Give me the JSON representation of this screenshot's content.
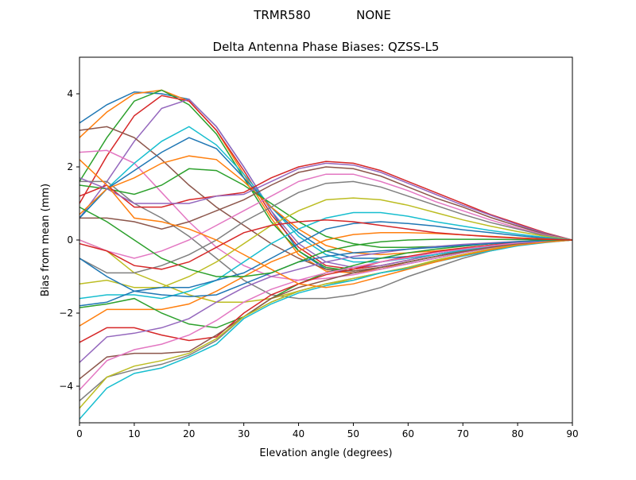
{
  "figure": {
    "suptitle_left": "TRMR580",
    "suptitle_right": "NONE"
  },
  "chart_data": {
    "type": "line",
    "title": "Delta Antenna Phase Biases: QZSS-L5",
    "xlabel": "Elevation angle (degrees)",
    "ylabel": "Bias from mean (mm)",
    "xlim": [
      0,
      90
    ],
    "ylim": [
      -5,
      5
    ],
    "xticks": [
      "0",
      "10",
      "20",
      "30",
      "40",
      "50",
      "60",
      "70",
      "80",
      "90"
    ],
    "yticks": [
      "−4",
      "−2",
      "0",
      "2",
      "4"
    ],
    "grid": false,
    "colors": [
      "#1f77b4",
      "#ff7f0e",
      "#2ca02c",
      "#d62728",
      "#9467bd",
      "#8c564b",
      "#e377c2",
      "#7f7f7f",
      "#bcbd22",
      "#17becf"
    ],
    "x": [
      0,
      5,
      10,
      15,
      20,
      25,
      30,
      35,
      40,
      45,
      50,
      55,
      60,
      65,
      70,
      75,
      80,
      85,
      90
    ],
    "series": [
      {
        "values": [
          3.2,
          3.7,
          4.05,
          4.0,
          3.85,
          3.1,
          2.0,
          0.8,
          -0.3,
          -0.8,
          -0.9,
          -0.8,
          -0.65,
          -0.5,
          -0.35,
          -0.22,
          -0.12,
          -0.05,
          0
        ]
      },
      {
        "values": [
          2.8,
          3.5,
          4.0,
          4.1,
          3.8,
          3.0,
          1.8,
          0.6,
          -0.4,
          -0.85,
          -0.9,
          -0.8,
          -0.6,
          -0.45,
          -0.3,
          -0.2,
          -0.1,
          -0.04,
          0
        ]
      },
      {
        "values": [
          1.6,
          2.8,
          3.8,
          4.1,
          3.7,
          2.9,
          1.7,
          0.5,
          -0.3,
          -0.75,
          -0.85,
          -0.75,
          -0.6,
          -0.45,
          -0.3,
          -0.2,
          -0.1,
          -0.04,
          0
        ]
      },
      {
        "values": [
          1.0,
          2.3,
          3.4,
          3.95,
          3.8,
          3.0,
          1.9,
          0.7,
          -0.2,
          -0.7,
          -0.8,
          -0.7,
          -0.55,
          -0.4,
          -0.28,
          -0.18,
          -0.1,
          -0.04,
          0
        ]
      },
      {
        "values": [
          0.6,
          1.6,
          2.7,
          3.6,
          3.85,
          3.1,
          2.0,
          0.8,
          -0.1,
          -0.6,
          -0.75,
          -0.7,
          -0.55,
          -0.4,
          -0.28,
          -0.18,
          -0.1,
          -0.04,
          0
        ]
      },
      {
        "values": [
          3.0,
          3.1,
          2.8,
          2.2,
          1.5,
          0.9,
          0.4,
          -0.1,
          -0.5,
          -0.8,
          -0.85,
          -0.75,
          -0.6,
          -0.45,
          -0.3,
          -0.2,
          -0.1,
          -0.04,
          0
        ]
      },
      {
        "values": [
          2.4,
          2.45,
          2.1,
          1.3,
          0.5,
          -0.2,
          -0.7,
          -1.0,
          -1.1,
          -1.05,
          -0.95,
          -0.8,
          -0.65,
          -0.5,
          -0.35,
          -0.22,
          -0.12,
          -0.05,
          0
        ]
      },
      {
        "values": [
          1.6,
          1.6,
          1.0,
          0.6,
          0.1,
          -0.5,
          -1.1,
          -1.5,
          -1.6,
          -1.6,
          -1.5,
          -1.3,
          -1.0,
          -0.75,
          -0.5,
          -0.3,
          -0.15,
          -0.06,
          0
        ]
      },
      {
        "values": [
          0.0,
          -0.3,
          -0.9,
          -1.2,
          -1.5,
          -1.7,
          -1.7,
          -1.6,
          -1.4,
          -1.2,
          -1.1,
          -0.9,
          -0.75,
          -0.55,
          -0.4,
          -0.25,
          -0.12,
          -0.05,
          0
        ]
      },
      {
        "values": [
          0.6,
          1.4,
          2.1,
          2.7,
          3.1,
          2.6,
          1.8,
          0.9,
          0.1,
          -0.4,
          -0.6,
          -0.6,
          -0.5,
          -0.4,
          -0.28,
          -0.18,
          -0.1,
          -0.04,
          0
        ]
      },
      {
        "values": [
          0.6,
          1.4,
          1.9,
          2.4,
          2.8,
          2.5,
          1.7,
          0.9,
          0.2,
          -0.3,
          -0.5,
          -0.5,
          -0.45,
          -0.35,
          -0.25,
          -0.16,
          -0.08,
          -0.03,
          0
        ]
      },
      {
        "values": [
          0.7,
          1.4,
          1.7,
          2.1,
          2.3,
          2.2,
          1.6,
          0.9,
          0.3,
          -0.15,
          -0.35,
          -0.4,
          -0.35,
          -0.3,
          -0.22,
          -0.14,
          -0.08,
          -0.03,
          0
        ]
      },
      {
        "values": [
          1.5,
          1.4,
          1.25,
          1.5,
          1.95,
          1.9,
          1.5,
          1.0,
          0.5,
          0.1,
          -0.1,
          -0.2,
          -0.2,
          -0.18,
          -0.14,
          -0.1,
          -0.06,
          -0.02,
          0
        ]
      },
      {
        "values": [
          1.2,
          1.5,
          0.9,
          0.9,
          1.1,
          1.2,
          1.3,
          1.7,
          2.0,
          2.15,
          2.1,
          1.9,
          1.6,
          1.3,
          1.0,
          0.7,
          0.45,
          0.2,
          0
        ]
      },
      {
        "values": [
          1.7,
          1.4,
          1.0,
          1.0,
          1.0,
          1.2,
          1.25,
          1.6,
          1.95,
          2.1,
          2.05,
          1.85,
          1.55,
          1.25,
          0.95,
          0.68,
          0.42,
          0.18,
          0
        ]
      },
      {
        "values": [
          0.6,
          0.6,
          0.5,
          0.3,
          0.5,
          0.8,
          1.1,
          1.5,
          1.85,
          2.0,
          1.95,
          1.75,
          1.45,
          1.15,
          0.9,
          0.62,
          0.38,
          0.16,
          0
        ]
      },
      {
        "values": [
          0.0,
          -0.3,
          -0.5,
          -0.3,
          0.0,
          0.4,
          0.8,
          1.2,
          1.6,
          1.8,
          1.8,
          1.6,
          1.35,
          1.05,
          0.8,
          0.55,
          0.33,
          0.14,
          0
        ]
      },
      {
        "values": [
          -0.5,
          -0.9,
          -0.9,
          -0.7,
          -0.4,
          0.0,
          0.5,
          0.9,
          1.3,
          1.55,
          1.6,
          1.45,
          1.2,
          0.95,
          0.7,
          0.48,
          0.3,
          0.12,
          0
        ]
      },
      {
        "values": [
          -1.2,
          -1.1,
          -1.3,
          -1.3,
          -1.0,
          -0.6,
          -0.1,
          0.4,
          0.8,
          1.1,
          1.15,
          1.1,
          0.95,
          0.75,
          0.55,
          0.38,
          0.23,
          0.1,
          0
        ]
      },
      {
        "values": [
          -1.6,
          -1.5,
          -1.5,
          -1.6,
          -1.4,
          -1.1,
          -0.6,
          -0.1,
          0.3,
          0.6,
          0.75,
          0.75,
          0.65,
          0.5,
          0.38,
          0.26,
          0.16,
          0.07,
          0
        ]
      },
      {
        "values": [
          -1.8,
          -1.7,
          -1.4,
          -1.3,
          -1.3,
          -1.1,
          -0.9,
          -0.5,
          -0.1,
          0.3,
          0.45,
          0.5,
          0.45,
          0.38,
          0.28,
          0.2,
          0.12,
          0.05,
          0
        ]
      },
      {
        "values": [
          -2.35,
          -1.9,
          -1.9,
          -1.9,
          -1.75,
          -1.4,
          -1.0,
          -0.6,
          -0.3,
          0.0,
          0.15,
          0.2,
          0.2,
          0.18,
          0.14,
          0.1,
          0.06,
          0.03,
          0
        ]
      },
      {
        "values": [
          -1.85,
          -1.75,
          -1.6,
          -2.0,
          -2.3,
          -2.4,
          -2.1,
          -1.6,
          -1.2,
          -0.9,
          -0.7,
          -0.5,
          -0.35,
          -0.25,
          -0.17,
          -0.1,
          -0.05,
          -0.02,
          0
        ]
      },
      {
        "values": [
          -2.8,
          -2.4,
          -2.4,
          -2.6,
          -2.75,
          -2.65,
          -2.0,
          -1.5,
          -1.2,
          -0.95,
          -0.8,
          -0.6,
          -0.45,
          -0.32,
          -0.22,
          -0.14,
          -0.07,
          -0.03,
          0
        ]
      },
      {
        "values": [
          -3.35,
          -2.65,
          -2.55,
          -2.4,
          -2.15,
          -1.7,
          -1.3,
          -1.0,
          -0.8,
          -0.6,
          -0.45,
          -0.35,
          -0.25,
          -0.18,
          -0.12,
          -0.08,
          -0.04,
          -0.02,
          0
        ]
      },
      {
        "values": [
          -3.8,
          -3.2,
          -3.1,
          -3.1,
          -3.05,
          -2.6,
          -2.1,
          -1.6,
          -1.3,
          -1.1,
          -0.9,
          -0.75,
          -0.6,
          -0.45,
          -0.32,
          -0.2,
          -0.1,
          -0.04,
          0
        ]
      },
      {
        "values": [
          -4.1,
          -3.3,
          -3.0,
          -2.85,
          -2.6,
          -2.2,
          -1.7,
          -1.35,
          -1.1,
          -0.9,
          -0.75,
          -0.6,
          -0.48,
          -0.35,
          -0.25,
          -0.16,
          -0.08,
          -0.03,
          0
        ]
      },
      {
        "values": [
          -4.4,
          -3.75,
          -3.55,
          -3.4,
          -3.15,
          -2.75,
          -2.1,
          -1.7,
          -1.4,
          -1.2,
          -1.05,
          -0.9,
          -0.75,
          -0.58,
          -0.42,
          -0.28,
          -0.15,
          -0.06,
          0
        ]
      },
      {
        "values": [
          -4.6,
          -3.75,
          -3.45,
          -3.3,
          -3.1,
          -2.7,
          -2.1,
          -1.7,
          -1.4,
          -1.2,
          -1.05,
          -0.9,
          -0.75,
          -0.58,
          -0.42,
          -0.28,
          -0.15,
          -0.06,
          0
        ]
      },
      {
        "values": [
          -4.9,
          -4.05,
          -3.65,
          -3.5,
          -3.2,
          -2.85,
          -2.15,
          -1.75,
          -1.45,
          -1.25,
          -1.1,
          -0.9,
          -0.78,
          -0.6,
          -0.44,
          -0.3,
          -0.16,
          -0.07,
          0
        ]
      },
      {
        "values": [
          -0.5,
          -1.0,
          -1.4,
          -1.5,
          -1.55,
          -1.5,
          -1.2,
          -0.9,
          -0.6,
          -0.45,
          -0.35,
          -0.3,
          -0.25,
          -0.2,
          -0.15,
          -0.1,
          -0.05,
          -0.02,
          0
        ]
      },
      {
        "values": [
          2.2,
          1.5,
          0.6,
          0.5,
          0.3,
          0.0,
          -0.4,
          -0.8,
          -1.2,
          -1.3,
          -1.2,
          -1.0,
          -0.8,
          -0.6,
          -0.42,
          -0.27,
          -0.14,
          -0.06,
          0
        ]
      },
      {
        "values": [
          0.9,
          0.5,
          0.0,
          -0.5,
          -0.8,
          -1.0,
          -1.0,
          -0.9,
          -0.6,
          -0.3,
          -0.15,
          -0.05,
          0.0,
          0.02,
          0.02,
          0.02,
          0.01,
          0.0,
          0
        ]
      },
      {
        "values": [
          -0.1,
          -0.3,
          -0.7,
          -0.8,
          -0.6,
          -0.2,
          0.2,
          0.4,
          0.5,
          0.55,
          0.5,
          0.4,
          0.3,
          0.2,
          0.14,
          0.09,
          0.05,
          0.02,
          0
        ]
      }
    ]
  }
}
